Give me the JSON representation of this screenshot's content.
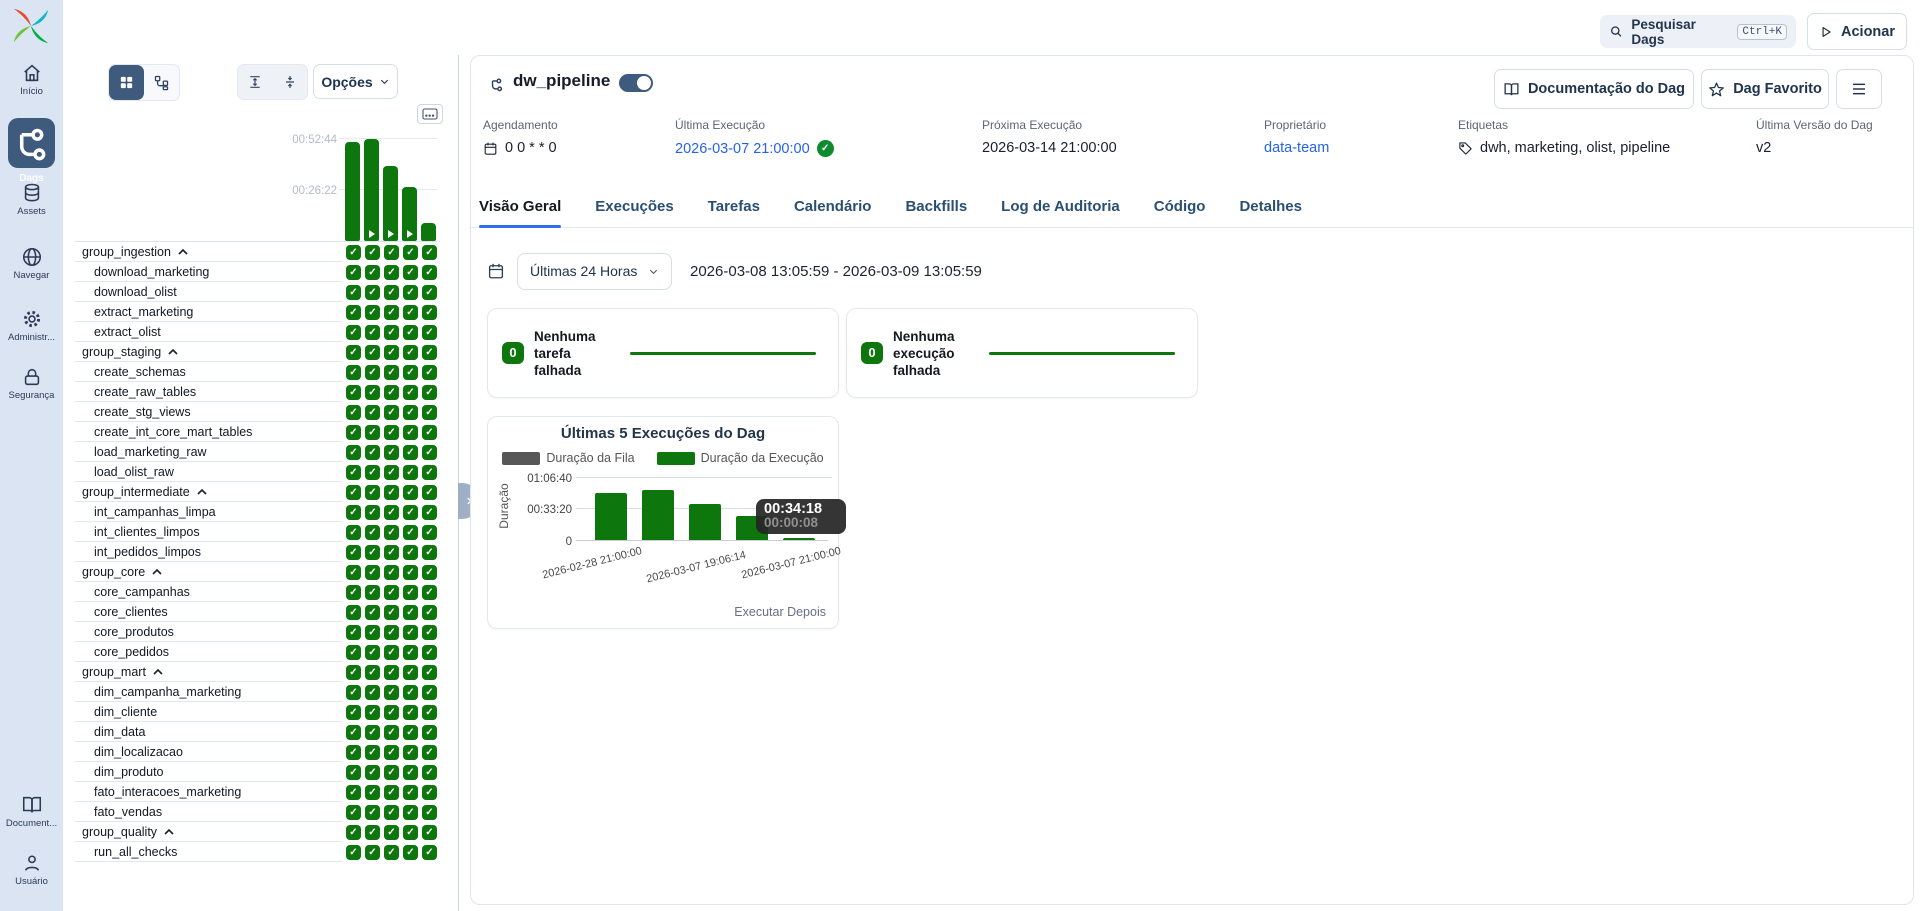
{
  "colors": {
    "accent_blue": "#2f6fed",
    "link_blue": "#2563eb",
    "success_green": "#0d760d",
    "nav_active": "#3e5a7d",
    "queue_gray": "#575757"
  },
  "sidebar": {
    "items": [
      {
        "label": "Início"
      },
      {
        "label": "Dags",
        "active": true
      },
      {
        "label": "Assets"
      },
      {
        "label": "Navegar"
      },
      {
        "label": "Administr..."
      },
      {
        "label": "Segurança"
      }
    ],
    "bottom_items": [
      {
        "label": "Document..."
      },
      {
        "label": "Usuário"
      }
    ]
  },
  "breadcrumb": {
    "section": "Dag",
    "dag_name": "dw_pipeline"
  },
  "topbar": {
    "search_label": "Pesquisar Dags",
    "search_shortcut": "Ctrl+K",
    "trigger_label": "Acionar"
  },
  "grid_panel": {
    "options_label": "Opções",
    "tasks": [
      {
        "name": "group_ingestion",
        "group": true
      },
      {
        "name": "download_marketing"
      },
      {
        "name": "download_olist"
      },
      {
        "name": "extract_marketing"
      },
      {
        "name": "extract_olist"
      },
      {
        "name": "group_staging",
        "group": true
      },
      {
        "name": "create_schemas"
      },
      {
        "name": "create_raw_tables"
      },
      {
        "name": "create_stg_views"
      },
      {
        "name": "create_int_core_mart_tables"
      },
      {
        "name": "load_marketing_raw"
      },
      {
        "name": "load_olist_raw"
      },
      {
        "name": "group_intermediate",
        "group": true
      },
      {
        "name": "int_campanhas_limpa"
      },
      {
        "name": "int_clientes_limpos"
      },
      {
        "name": "int_pedidos_limpos"
      },
      {
        "name": "group_core",
        "group": true
      },
      {
        "name": "core_campanhas"
      },
      {
        "name": "core_clientes"
      },
      {
        "name": "core_produtos"
      },
      {
        "name": "core_pedidos"
      },
      {
        "name": "group_mart",
        "group": true
      },
      {
        "name": "dim_campanha_marketing"
      },
      {
        "name": "dim_cliente"
      },
      {
        "name": "dim_data"
      },
      {
        "name": "dim_localizacao"
      },
      {
        "name": "dim_produto"
      },
      {
        "name": "fato_interacoes_marketing"
      },
      {
        "name": "fato_vendas"
      },
      {
        "name": "group_quality",
        "group": true
      },
      {
        "name": "run_all_checks"
      }
    ]
  },
  "dag_header": {
    "title": "dw_pipeline",
    "dag_docs_label": "Documentação do Dag",
    "favorite_label": "Dag Favorito"
  },
  "info_panel": {
    "schedule_label": "Agendamento",
    "schedule_value": "0 0 * * 0",
    "last_run_label": "Última Execução",
    "last_run_value": "2026-03-07 21:00:00",
    "next_run_label": "Próxima Execução",
    "next_run_value": "2026-03-14 21:00:00",
    "owner_label": "Proprietário",
    "owner_value": "data-team",
    "tags_label": "Etiquetas",
    "tags_value": "dwh, marketing, olist, pipeline",
    "version_label": "Última Versão do Dag",
    "version_value": "v2"
  },
  "tabs": [
    {
      "label": "Visão Geral",
      "active": true
    },
    {
      "label": "Execuções"
    },
    {
      "label": "Tarefas"
    },
    {
      "label": "Calendário"
    },
    {
      "label": "Backfills"
    },
    {
      "label": "Log de Auditoria"
    },
    {
      "label": "Código"
    },
    {
      "label": "Detalhes"
    }
  ],
  "filters": {
    "preset": "Últimas 24 Horas",
    "range": "2026-03-08 13:05:59 - 2026-03-09 13:05:59"
  },
  "stat_cards": [
    {
      "count": "0",
      "line1": "Nenhuma",
      "line2": "tarefa",
      "line3": "falhada"
    },
    {
      "count": "0",
      "line1": "Nenhuma",
      "line2": "execução",
      "line3": "falhada"
    }
  ],
  "chart_data": [
    {
      "id": "grid-run-duration-bars",
      "type": "bar",
      "yticks": [
        {
          "label": "00:52:44",
          "seconds": 3164
        },
        {
          "label": "00:26:22",
          "seconds": 1582
        }
      ],
      "ymax_seconds": 3500,
      "runs": [
        {
          "duration_seconds": 3070,
          "manual": false
        },
        {
          "duration_seconds": 3164,
          "manual": true
        },
        {
          "duration_seconds": 2320,
          "manual": true
        },
        {
          "duration_seconds": 1660,
          "manual": true
        },
        {
          "duration_seconds": 560,
          "manual": false
        }
      ],
      "bar_color": "#0d760d"
    },
    {
      "id": "last-5-dag-runs",
      "type": "bar",
      "title": "Últimas 5 Execuções do Dag",
      "ylabel": "Duração",
      "legend": [
        {
          "label": "Duração da Fila",
          "color": "#575757"
        },
        {
          "label": "Duração da Execução",
          "color": "#0d760d"
        }
      ],
      "yticks": [
        {
          "label": "01:06:40",
          "seconds": 4000
        },
        {
          "label": "00:33:20",
          "seconds": 2000
        },
        {
          "label": "0",
          "seconds": 0
        }
      ],
      "ymax_seconds": 4300,
      "series": [
        {
          "name": "Duração da Fila",
          "values_seconds": [
            8,
            8,
            8,
            8,
            8
          ]
        },
        {
          "name": "Duração da Execução",
          "values_seconds": [
            3000,
            3140,
            2290,
            1500,
            140
          ]
        }
      ],
      "x_tick_labels": [
        "2026-02-28 21:00:00",
        "2026-03-07 19:06:14",
        "2026-03-07 21:00:00"
      ],
      "tooltip": {
        "execution_duration": "00:34:18",
        "queue_duration": "00:00:08"
      },
      "footer_label": "Executar Depois"
    }
  ]
}
